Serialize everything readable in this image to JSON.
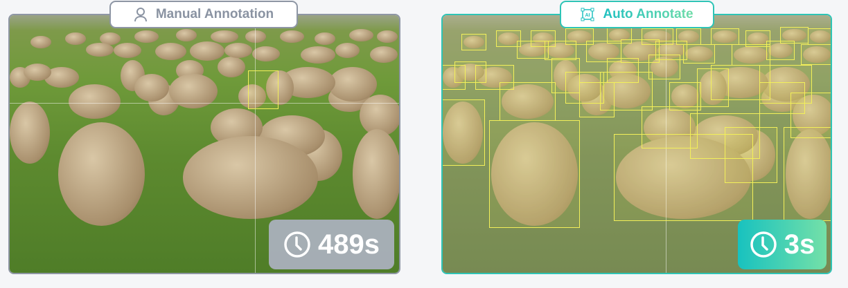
{
  "manual": {
    "label": "Manual Annotation",
    "icon": "user-icon",
    "time": "489s",
    "time_icon": "clock-icon",
    "border_color": "#8e96a4"
  },
  "auto": {
    "label": "Auto Annotate",
    "icon": "ai-frame-icon",
    "time": "3s",
    "time_icon": "clock-icon",
    "accent_start": "#1fc0c0",
    "accent_end": "#6fdca8"
  }
}
